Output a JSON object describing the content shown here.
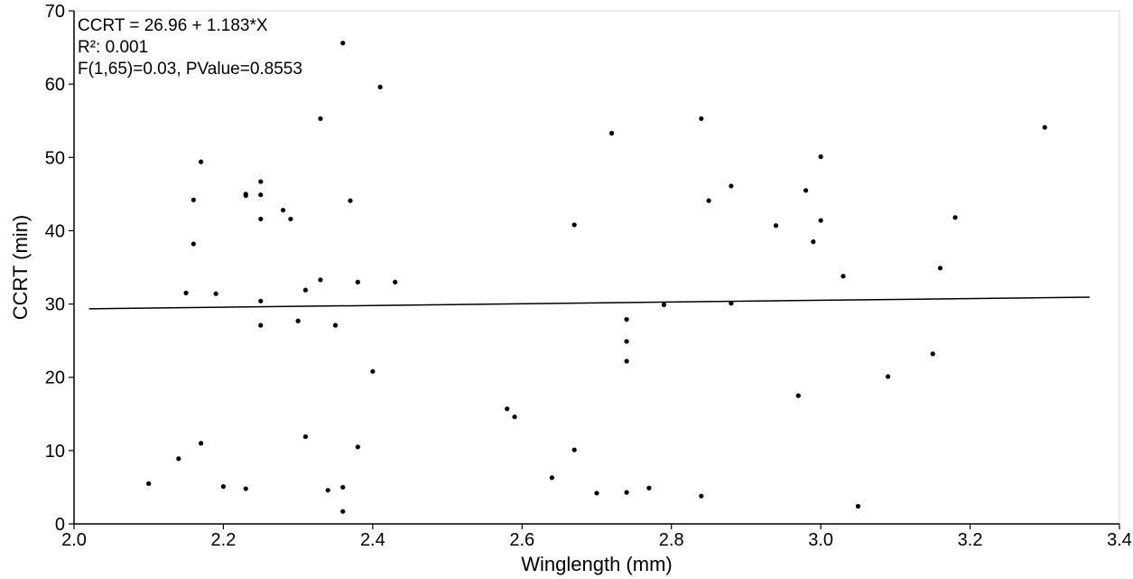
{
  "chart_data": {
    "type": "scatter",
    "xlabel": "Winglength (mm)",
    "ylabel": "CCRT (min)",
    "xlim": [
      2.0,
      3.4
    ],
    "ylim": [
      0,
      70
    ],
    "xticks": [
      "2.0",
      "2.2",
      "2.4",
      "2.6",
      "2.8",
      "3.0",
      "3.2",
      "3.4"
    ],
    "yticks": [
      "0",
      "10",
      "20",
      "30",
      "40",
      "50",
      "60",
      "70"
    ],
    "grid": false,
    "annotations": [
      "CCRT = 26.96 + 1.183*X",
      "R²: 0.001",
      "F(1,65)=0.03, PValue=0.8553"
    ],
    "fit_line": {
      "intercept": 26.96,
      "slope": 1.183,
      "x_range": [
        2.02,
        3.36
      ]
    },
    "points": [
      [
        2.1,
        5.5
      ],
      [
        2.14,
        8.9
      ],
      [
        2.15,
        31.5
      ],
      [
        2.16,
        44.2
      ],
      [
        2.16,
        38.2
      ],
      [
        2.17,
        49.4
      ],
      [
        2.17,
        11.0
      ],
      [
        2.19,
        31.4
      ],
      [
        2.2,
        5.1
      ],
      [
        2.23,
        45.0
      ],
      [
        2.23,
        44.8
      ],
      [
        2.23,
        4.8
      ],
      [
        2.25,
        46.7
      ],
      [
        2.25,
        44.9
      ],
      [
        2.25,
        41.6
      ],
      [
        2.25,
        30.4
      ],
      [
        2.25,
        27.1
      ],
      [
        2.28,
        42.8
      ],
      [
        2.29,
        41.6
      ],
      [
        2.3,
        27.7
      ],
      [
        2.31,
        31.9
      ],
      [
        2.31,
        11.9
      ],
      [
        2.33,
        55.3
      ],
      [
        2.33,
        33.3
      ],
      [
        2.34,
        4.6
      ],
      [
        2.35,
        27.1
      ],
      [
        2.36,
        65.6
      ],
      [
        2.36,
        5.0
      ],
      [
        2.36,
        1.7
      ],
      [
        2.37,
        44.1
      ],
      [
        2.38,
        33.0
      ],
      [
        2.38,
        10.5
      ],
      [
        2.4,
        20.8
      ],
      [
        2.41,
        59.6
      ],
      [
        2.43,
        33.0
      ],
      [
        2.58,
        15.7
      ],
      [
        2.59,
        14.6
      ],
      [
        2.64,
        6.3
      ],
      [
        2.67,
        40.8
      ],
      [
        2.67,
        10.1
      ],
      [
        2.7,
        4.2
      ],
      [
        2.72,
        53.3
      ],
      [
        2.74,
        27.9
      ],
      [
        2.74,
        24.9
      ],
      [
        2.74,
        22.2
      ],
      [
        2.74,
        4.3
      ],
      [
        2.77,
        4.9
      ],
      [
        2.79,
        29.9
      ],
      [
        2.84,
        55.3
      ],
      [
        2.84,
        3.8
      ],
      [
        2.85,
        44.1
      ],
      [
        2.88,
        46.1
      ],
      [
        2.88,
        30.1
      ],
      [
        2.94,
        40.7
      ],
      [
        2.97,
        17.5
      ],
      [
        2.98,
        45.5
      ],
      [
        2.99,
        38.5
      ],
      [
        3.0,
        50.1
      ],
      [
        3.0,
        41.4
      ],
      [
        3.03,
        33.8
      ],
      [
        3.05,
        2.4
      ],
      [
        3.09,
        20.1
      ],
      [
        3.15,
        23.2
      ],
      [
        3.16,
        34.9
      ],
      [
        3.18,
        41.8
      ],
      [
        3.3,
        54.1
      ]
    ]
  }
}
